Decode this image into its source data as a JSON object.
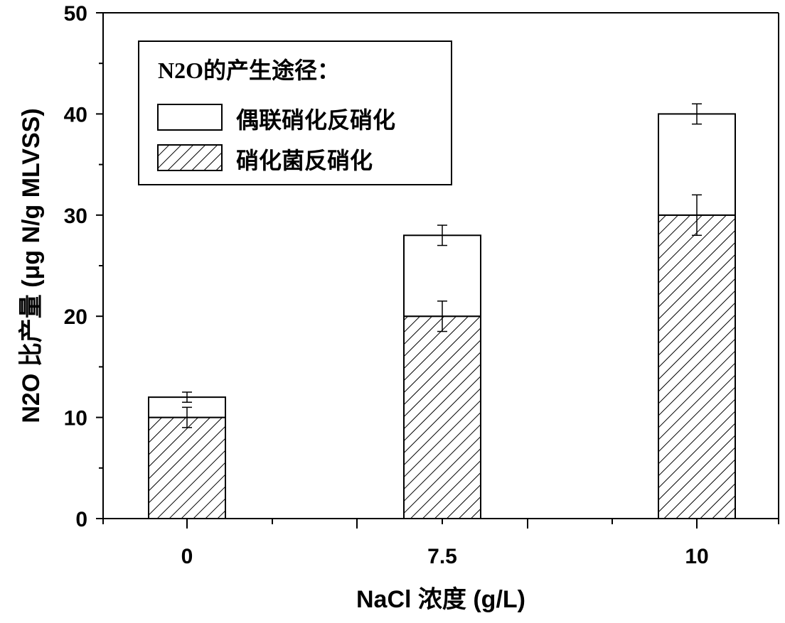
{
  "chart_data": {
    "type": "bar",
    "stacked": true,
    "categories": [
      "0",
      "7.5",
      "10"
    ],
    "series": [
      {
        "name": "硝化菌反硝化",
        "values": [
          10,
          20,
          30
        ],
        "error": [
          1.0,
          1.5,
          2.0
        ],
        "fill": "hatch"
      },
      {
        "name": "偶联硝化反硝化",
        "values": [
          2,
          8,
          10
        ],
        "error": [
          0.5,
          1.0,
          1.0
        ],
        "fill": "white"
      }
    ],
    "xlabel": "NaCl 浓度 (g/L)",
    "ylabel": "N2O 比产量 (μg N/g MLVSS)",
    "ylim": [
      0,
      50
    ],
    "yticks": [
      "0",
      "10",
      "20",
      "30",
      "40",
      "50"
    ],
    "grid": false,
    "legend": {
      "title": "N2O的产生途径：",
      "position": "top-left",
      "items": [
        "偶联硝化反硝化",
        "硝化菌反硝化"
      ]
    },
    "colors": {
      "axis": "#000000",
      "bar_edge": "#000000",
      "bar_fill": "#ffffff"
    }
  }
}
